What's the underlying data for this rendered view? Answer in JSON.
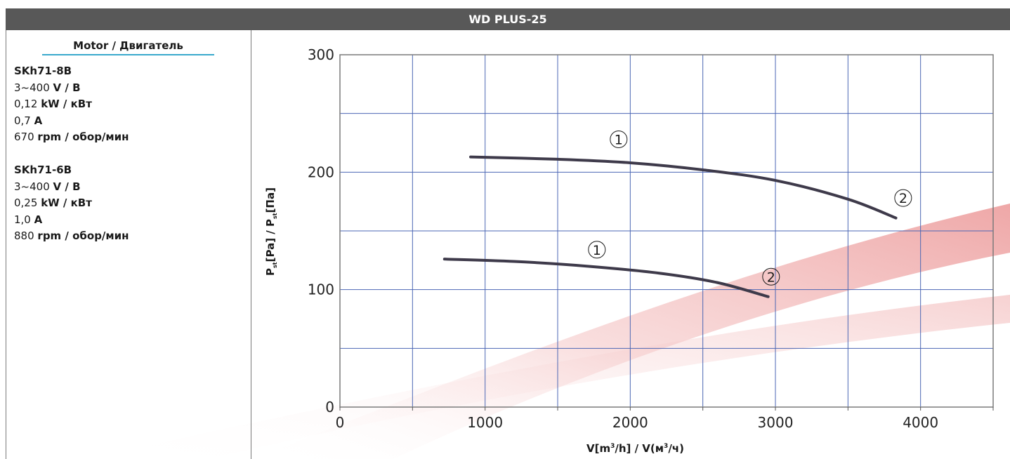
{
  "header": {
    "title": "WD PLUS-25"
  },
  "motor": {
    "heading": "Motor / Двигатель",
    "models": [
      {
        "name": "SKh71-8B",
        "voltage": "3~400",
        "voltage_unit": "V / В",
        "power": "0,12",
        "power_unit": "kW / кВт",
        "current": "0,7",
        "current_unit": "A",
        "speed": "670",
        "speed_unit": "rpm / обор/мин"
      },
      {
        "name": "SKh71-6B",
        "voltage": "3~400",
        "voltage_unit": "V / В",
        "power": "0,25",
        "power_unit": "kW / кВт",
        "current": "1,0",
        "current_unit": "A",
        "speed": "880",
        "speed_unit": "rpm / обор/мин"
      }
    ]
  },
  "chart_data": {
    "type": "line",
    "title": "WD PLUS-25",
    "xlabel_parts": {
      "a": "V[m",
      "b": "/h] / V(м",
      "c": "/ч)",
      "sup": "3"
    },
    "ylabel_parts": {
      "p": "P",
      "sub": "st",
      "a": "[Pa] / P",
      "b": "[Па]"
    },
    "xlim": [
      0,
      4500
    ],
    "ylim": [
      0,
      300
    ],
    "x_ticks": [
      0,
      1000,
      2000,
      3000,
      4000
    ],
    "y_ticks": [
      0,
      100,
      200,
      300
    ],
    "x_grid_step": 500,
    "y_grid_step": 50,
    "grid": true,
    "series": [
      {
        "x": [
          900,
          1500,
          2000,
          2500,
          3000,
          3500,
          3830
        ],
        "y": [
          213,
          211,
          208,
          202,
          193,
          177,
          161
        ],
        "markers": [
          {
            "label": "1",
            "x": 1920,
            "y": 228
          },
          {
            "label": "2",
            "x": 3880,
            "y": 178
          }
        ]
      },
      {
        "x": [
          720,
          1200,
          1700,
          2200,
          2600,
          2950
        ],
        "y": [
          126,
          124,
          120,
          114,
          106,
          94
        ],
        "markers": [
          {
            "label": "1",
            "x": 1770,
            "y": 134
          },
          {
            "label": "2",
            "x": 2970,
            "y": 111
          }
        ]
      }
    ],
    "colors": {
      "curve": "#3e3a4a",
      "grid": "#4b66b4",
      "marker": "#1a1a1a",
      "background_swoosh": "#f2b8b8"
    }
  }
}
